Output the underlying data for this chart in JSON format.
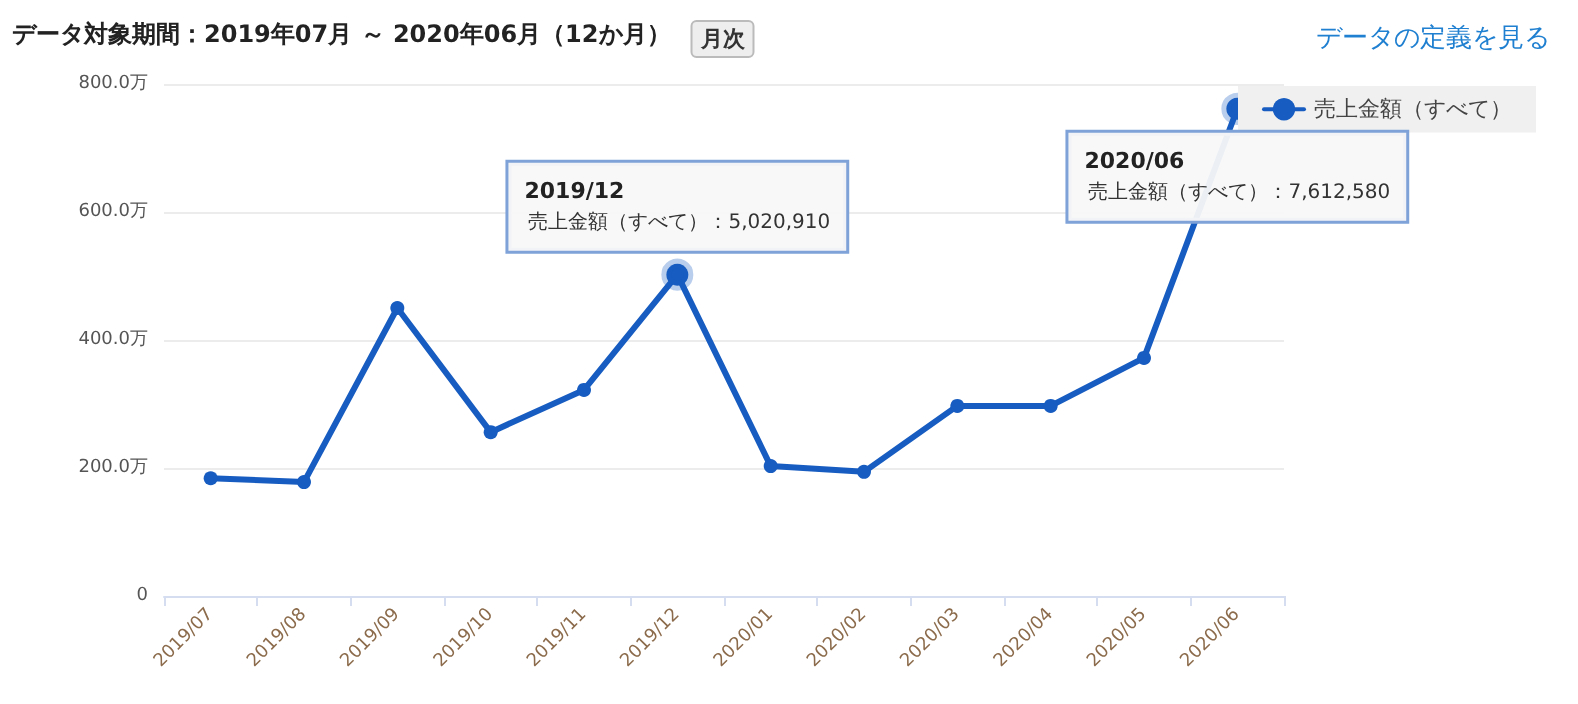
{
  "chart_data": {
    "type": "line",
    "title": "データ対象期間：2019年07月 ～ 2020年06月（12か月）",
    "categories": [
      "2019/07",
      "2019/08",
      "2019/09",
      "2019/10",
      "2019/11",
      "2019/12",
      "2020/01",
      "2020/02",
      "2020/03",
      "2020/04",
      "2020/05",
      "2020/06"
    ],
    "series": [
      {
        "name": "売上金額（すべて）",
        "color": "#175cc0",
        "values": [
          184,
          178,
          450,
          256,
          322,
          502.091,
          203,
          194,
          297,
          297,
          372,
          761.258
        ]
      }
    ],
    "ylim": [
      0,
      800
    ],
    "yticks": [
      0,
      {
        "value": 200,
        "label": "200.0万"
      },
      {
        "value": 400,
        "label": "400.0万"
      },
      {
        "value": 600,
        "label": "600.0万"
      },
      {
        "value": 800,
        "label": "800.0万"
      }
    ],
    "annotations": [
      "月次",
      "データの定義を見る",
      {
        "text": "2019/12\n売上金額（すべて）：5,020,910",
        "x": "2019/12",
        "y": 502.091
      },
      {
        "text": "2020/06\n売上金額（すべて）：7,612,580",
        "x": "2020/06",
        "y": 761.258
      }
    ],
    "grid": "y",
    "legend": "top right",
    "marker": "circle",
    "line_style": "solid"
  }
}
